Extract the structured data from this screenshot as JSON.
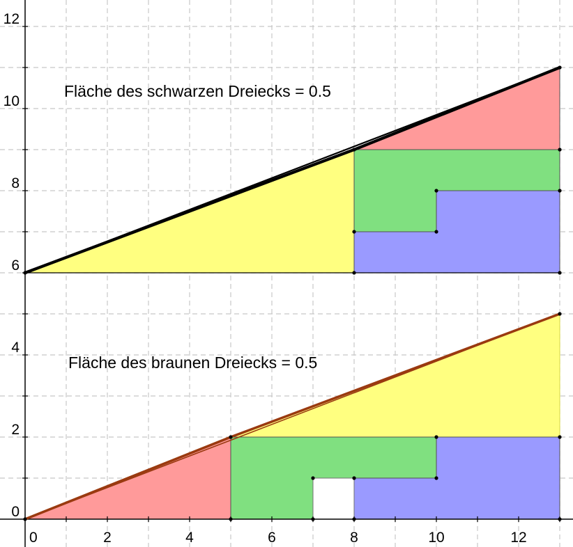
{
  "texts": {
    "top_caption": "Fläche des schwarzen Dreiecks = 0.5",
    "bottom_caption": "Fläche des braunen Dreiecks = 0.5"
  },
  "axes": {
    "x_range": [
      -0.3,
      13.6
    ],
    "y_range": [
      -0.6,
      12.6
    ],
    "x_tick_labels": [
      {
        "value": 0,
        "label": "0"
      },
      {
        "value": 2,
        "label": "2"
      },
      {
        "value": 4,
        "label": "4"
      },
      {
        "value": 6,
        "label": "6"
      },
      {
        "value": 8,
        "label": "8"
      },
      {
        "value": 10,
        "label": "10"
      },
      {
        "value": 12,
        "label": "12"
      }
    ],
    "y_tick_labels": [
      {
        "value": 0,
        "label": "0"
      },
      {
        "value": 2,
        "label": "2"
      },
      {
        "value": 4,
        "label": "4"
      },
      {
        "value": 6,
        "label": "6"
      },
      {
        "value": 8,
        "label": "8"
      },
      {
        "value": 10,
        "label": "10"
      },
      {
        "value": 12,
        "label": "12"
      }
    ],
    "grid": true
  },
  "colors": {
    "red": "#ff9a9a",
    "yellow": "#ffff80",
    "green": "#80e080",
    "blue": "#9a9aff",
    "white": "#ffffff",
    "black_line": "#000000",
    "brown_line": "#9a3a10",
    "grid": "#c8c8c8"
  },
  "shapes": {
    "top": [
      {
        "name": "yellow-triangle",
        "color": "yellow",
        "points": [
          [
            0,
            6
          ],
          [
            8,
            6
          ],
          [
            8,
            9
          ]
        ]
      },
      {
        "name": "red-triangle",
        "color": "red",
        "points": [
          [
            8,
            9
          ],
          [
            13,
            9
          ],
          [
            13,
            11
          ]
        ]
      },
      {
        "name": "green-region",
        "color": "green",
        "points": [
          [
            8,
            7
          ],
          [
            8,
            9
          ],
          [
            13,
            9
          ],
          [
            13,
            8
          ],
          [
            10,
            8
          ],
          [
            10,
            7
          ]
        ]
      },
      {
        "name": "blue-region",
        "color": "blue",
        "points": [
          [
            8,
            6
          ],
          [
            13,
            6
          ],
          [
            13,
            8
          ],
          [
            10,
            8
          ],
          [
            10,
            7
          ],
          [
            8,
            7
          ]
        ]
      }
    ],
    "bottom": [
      {
        "name": "red-triangle",
        "color": "red",
        "points": [
          [
            0,
            0
          ],
          [
            5,
            0
          ],
          [
            5,
            2
          ]
        ]
      },
      {
        "name": "yellow-triangle",
        "color": "yellow",
        "points": [
          [
            5,
            2
          ],
          [
            13,
            2
          ],
          [
            13,
            5
          ]
        ]
      },
      {
        "name": "green-region",
        "color": "green",
        "points": [
          [
            5,
            0
          ],
          [
            7,
            0
          ],
          [
            7,
            1
          ],
          [
            10,
            1
          ],
          [
            10,
            2
          ],
          [
            5,
            2
          ]
        ]
      },
      {
        "name": "blue-region",
        "color": "blue",
        "points": [
          [
            8,
            0
          ],
          [
            13,
            0
          ],
          [
            13,
            2
          ],
          [
            10,
            2
          ],
          [
            10,
            1
          ],
          [
            8,
            1
          ]
        ]
      },
      {
        "name": "white-hole",
        "color": "white",
        "points": [
          [
            7,
            0
          ],
          [
            8,
            0
          ],
          [
            8,
            1
          ],
          [
            7,
            1
          ]
        ]
      }
    ]
  },
  "lines": {
    "top_hypotenuse": {
      "from": [
        0,
        6
      ],
      "to": [
        13,
        11
      ],
      "color": "black_line"
    },
    "top_black_triangle": {
      "points": [
        [
          0,
          6
        ],
        [
          8,
          9
        ],
        [
          13,
          11
        ]
      ],
      "color": "black_line"
    },
    "bottom_hypotenuse": {
      "from": [
        0,
        0
      ],
      "to": [
        13,
        5
      ],
      "color": "brown_line"
    },
    "bottom_brown_triangle": {
      "points": [
        [
          0,
          0
        ],
        [
          5,
          2
        ],
        [
          13,
          5
        ]
      ],
      "color": "brown_line"
    }
  },
  "points": {
    "top": [
      [
        0,
        6
      ],
      [
        8,
        6
      ],
      [
        8,
        7
      ],
      [
        8,
        9
      ],
      [
        10,
        7
      ],
      [
        10,
        8
      ],
      [
        13,
        6
      ],
      [
        13,
        8
      ],
      [
        13,
        9
      ],
      [
        13,
        11
      ]
    ],
    "bottom": [
      [
        0,
        0
      ],
      [
        5,
        0
      ],
      [
        5,
        2
      ],
      [
        7,
        0
      ],
      [
        7,
        1
      ],
      [
        8,
        0
      ],
      [
        8,
        1
      ],
      [
        10,
        1
      ],
      [
        10,
        2
      ],
      [
        13,
        0
      ],
      [
        13,
        2
      ],
      [
        13,
        5
      ]
    ]
  }
}
